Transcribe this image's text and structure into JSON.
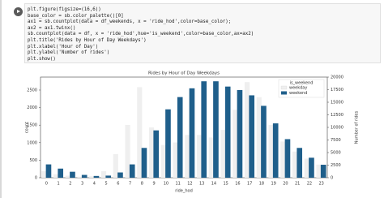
{
  "code": [
    "plt.figure(figsize=(16,6))",
    "base_color = sb.color_palette()[0]",
    "ax1 = sb.countplot(data = df_weekends, x = 'ride_hod',color=base_color);",
    "ax2 = ax1.twinx()",
    "sb.countplot(data = df, x = 'ride_hod',hue='is_weekend',color=base_color,ax=ax2)",
    "plt.title('Rides by Hour of Day Weekdays')",
    "plt.xlabel('Hour of Day')",
    "plt.ylabel('Number of rides')",
    "plt.show()"
  ],
  "chart_data": {
    "type": "bar",
    "title": "Rides by Hour of Day Weekdays",
    "x_label": "ride_hod",
    "y_label": "count",
    "y2_label": "Number of rides",
    "categories": [
      "0",
      "1",
      "2",
      "3",
      "4",
      "5",
      "6",
      "7",
      "8",
      "9",
      "10",
      "11",
      "12",
      "13",
      "14",
      "15",
      "16",
      "17",
      "18",
      "19",
      "20",
      "21",
      "22",
      "23"
    ],
    "legend_title": "is_weekend",
    "series": [
      {
        "name": "weekday",
        "color": "#efefef",
        "axis": "y2",
        "values": [
          1300,
          700,
          400,
          200,
          300,
          1300,
          4700,
          10500,
          18000,
          10000,
          6500,
          7000,
          8500,
          8500,
          8000,
          9500,
          13500,
          19000,
          16000,
          10500,
          7200,
          5200,
          3800,
          2600
        ]
      },
      {
        "name": "weekend",
        "color": "#1f5f8b",
        "values": [
          380,
          260,
          170,
          80,
          50,
          60,
          150,
          380,
          850,
          1350,
          1950,
          2300,
          2550,
          2750,
          2750,
          2600,
          2500,
          2350,
          2050,
          1550,
          1100,
          850,
          570,
          370
        ]
      }
    ],
    "ylim": [
      0,
      2870
    ],
    "yticks": [
      0,
      500,
      1000,
      1500,
      2000,
      2500
    ],
    "y2lim": [
      0,
      20000
    ],
    "y2ticks": [
      0,
      2500,
      5000,
      7500,
      10000,
      12500,
      15000,
      17500,
      20000
    ],
    "legend": "upper right"
  }
}
